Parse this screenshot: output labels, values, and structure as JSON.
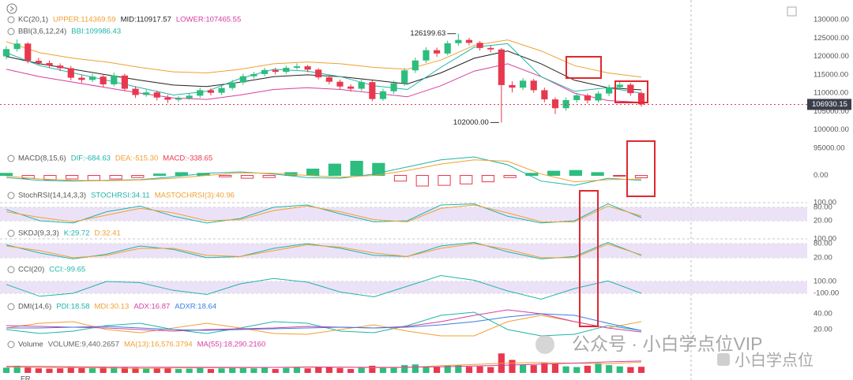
{
  "chart_data": [
    {
      "type": "candlestick",
      "overlays": [
        {
          "title": "KC(20,1)",
          "series": [
            {
              "name": "UPPER:114369.59",
              "color": "#f0a030",
              "values": [
                124000,
                121000,
                119500,
                118500,
                117000,
                115800,
                115500,
                116500,
                118000,
                118500,
                118000,
                117000,
                116500,
                119000,
                123000,
                124500,
                121500,
                117500,
                115500,
                114400
              ]
            },
            {
              "name": "MID:110917.57",
              "color": "#222222",
              "values": [
                120000,
                118000,
                116500,
                115000,
                113500,
                112200,
                111800,
                113000,
                114500,
                115000,
                114500,
                113500,
                112500,
                115500,
                119500,
                121500,
                118000,
                113500,
                111500,
                110900
              ]
            },
            {
              "name": "LOWER:107465.55",
              "color": "#d63ea0",
              "values": [
                116500,
                114500,
                113000,
                111500,
                110000,
                108700,
                108300,
                109500,
                111000,
                111500,
                111000,
                110000,
                109000,
                112000,
                116000,
                118000,
                114500,
                110000,
                108000,
                107500
              ]
            }
          ]
        },
        {
          "title": "BBI(3,6,12,24)",
          "series": [
            {
              "name": "BBI:109986.43",
              "color": "#1fb5a8",
              "values": [
                121000,
                117500,
                115500,
                113500,
                111500,
                109500,
                110500,
                114000,
                116500,
                116000,
                114500,
                112000,
                111000,
                117000,
                122500,
                123500,
                114500,
                110500,
                111500,
                109986
              ]
            }
          ]
        }
      ],
      "open": [
        120000,
        122000,
        123500,
        118800,
        118200,
        117500,
        116800,
        114200,
        113600,
        114500,
        112400,
        114800,
        111200,
        109500,
        110200,
        108800,
        108200,
        108600,
        109300,
        110800,
        110100,
        111400,
        112900,
        114600,
        115200,
        116300,
        115800,
        116900,
        117300,
        116400,
        114300,
        113100,
        111800,
        111200,
        113000,
        108400,
        110500,
        112700,
        116200,
        118900,
        121700,
        120800,
        123600,
        124500,
        123700,
        122300,
        121900,
        112200,
        111500,
        113400,
        110800,
        108300,
        105900,
        108100,
        109400,
        108000,
        109900,
        111600,
        112300,
        110000
      ],
      "high": [
        122800,
        124600,
        123900,
        119600,
        118900,
        118100,
        117400,
        114900,
        115300,
        114900,
        115600,
        115300,
        111900,
        110900,
        110700,
        109500,
        109200,
        109900,
        111500,
        111300,
        112000,
        113600,
        115300,
        115800,
        116900,
        116900,
        117500,
        118100,
        117700,
        116800,
        114900,
        113700,
        112400,
        113700,
        113500,
        111200,
        113400,
        116800,
        119700,
        122500,
        122400,
        124300,
        126199.63,
        125100,
        124200,
        122900,
        122300,
        113200,
        114100,
        113900,
        111500,
        108900,
        108800,
        110100,
        109900,
        110500,
        112300,
        113200,
        112800,
        110500
      ],
      "low": [
        119200,
        121300,
        118100,
        117600,
        116900,
        116000,
        113500,
        112800,
        113000,
        111700,
        111900,
        110500,
        108700,
        109000,
        108000,
        107300,
        107600,
        108200,
        108700,
        109400,
        109500,
        110800,
        112300,
        114000,
        114600,
        115100,
        115200,
        116400,
        115700,
        113700,
        112400,
        111000,
        110400,
        110600,
        107800,
        107900,
        109800,
        112000,
        115500,
        118200,
        119900,
        120300,
        122900,
        123000,
        121600,
        121100,
        102000,
        110200,
        110800,
        110100,
        107500,
        104300,
        105200,
        107400,
        107200,
        107500,
        109200,
        110900,
        109300,
        106300
      ],
      "close": [
        122000,
        123500,
        118800,
        118200,
        117500,
        116800,
        114200,
        113600,
        114500,
        112400,
        114800,
        111200,
        109500,
        110200,
        108800,
        108200,
        108600,
        109300,
        110800,
        110100,
        111400,
        112900,
        114600,
        115200,
        116300,
        115800,
        116900,
        117300,
        116400,
        114300,
        113100,
        111800,
        111200,
        113000,
        108400,
        110500,
        112700,
        116200,
        118900,
        121700,
        120800,
        123600,
        124500,
        123700,
        122300,
        121900,
        112200,
        111500,
        113400,
        110800,
        108300,
        105900,
        108100,
        109400,
        108000,
        109900,
        111600,
        112300,
        110000,
        106930.15
      ],
      "up_color": "#2dbd7e",
      "down_color": "#e8384f",
      "high_label": {
        "value": 126199.63,
        "label": "126199.63"
      },
      "low_label": {
        "value": 102000,
        "label": "102000.00"
      },
      "price_line": {
        "value": 106930.15,
        "label": "106930.15"
      },
      "ylim": [
        95000,
        130000
      ],
      "yticks": [
        {
          "value": 130000,
          "label": "130000.00"
        },
        {
          "value": 125000,
          "label": "125000.00"
        },
        {
          "value": 120000,
          "label": "120000.00"
        },
        {
          "value": 115000,
          "label": "115000.00"
        },
        {
          "value": 110000,
          "label": "110000.00"
        },
        {
          "value": 105000,
          "label": "105000.00"
        },
        {
          "value": 100000,
          "label": "100000.00"
        },
        {
          "value": 95000,
          "label": "95000.00"
        }
      ],
      "grid": false
    },
    {
      "type": "macd",
      "title": "MACD(8,15,6)",
      "series": [
        {
          "name": "DIF:-684.63",
          "color": "#1fb5a8",
          "values": [
            -300,
            -700,
            -800,
            -700,
            -600,
            -200,
            300,
            500,
            200,
            -300,
            -400,
            200,
            1200,
            2200,
            2600,
            1500,
            -800,
            -1400,
            -400,
            -684.63
          ]
        },
        {
          "name": "DEA:-515.30",
          "color": "#f0a030",
          "values": [
            -100,
            -500,
            -700,
            -750,
            -650,
            -400,
            0,
            350,
            300,
            0,
            -250,
            0,
            700,
            1600,
            2200,
            2000,
            200,
            -900,
            -600,
            -515.3
          ]
        }
      ],
      "bars": {
        "name": "MACD:-338.65",
        "color": "#e8384f",
        "values": [
          300,
          -400,
          -600,
          -500,
          -700,
          -500,
          -300,
          200,
          400,
          300,
          -200,
          -400,
          -300,
          400,
          900,
          1600,
          2000,
          1700,
          -800,
          -1500,
          -1400,
          -1200,
          -900,
          -300,
          300,
          600,
          700,
          400,
          -100,
          -338.65
        ]
      },
      "ylim": [
        -2500,
        2500
      ],
      "yticks": [
        {
          "value": 0,
          "label": "0.00"
        }
      ],
      "grid": false
    },
    {
      "type": "oscillator",
      "title": "StochRSI(14,14,3,3)",
      "series": [
        {
          "name": "STOCHRSI:34.11",
          "color": "#1fb5a8",
          "values": [
            70,
            20,
            10,
            60,
            85,
            40,
            10,
            30,
            80,
            90,
            50,
            15,
            20,
            90,
            95,
            40,
            10,
            20,
            95,
            34.11
          ]
        },
        {
          "name": "MASTOCHRSI(3):40.96",
          "color": "#f0a030",
          "values": [
            60,
            35,
            15,
            45,
            75,
            55,
            20,
            25,
            65,
            85,
            60,
            25,
            15,
            75,
            90,
            55,
            15,
            15,
            85,
            40.96
          ]
        }
      ],
      "ylim": [
        -15,
        125
      ],
      "yticks": [
        {
          "value": 100,
          "label": "100.00"
        },
        {
          "value": 80,
          "label": "80.00"
        },
        {
          "value": 20,
          "label": "20.00"
        }
      ],
      "grid": true,
      "shade": true
    },
    {
      "type": "oscillator",
      "title": "SKDJ(9,3,3)",
      "series": [
        {
          "name": "K:29.72",
          "color": "#1fb5a8",
          "values": [
            75,
            40,
            15,
            35,
            70,
            55,
            20,
            25,
            60,
            80,
            60,
            30,
            25,
            70,
            85,
            45,
            15,
            25,
            85,
            29.72
          ]
        },
        {
          "name": "D:32.41",
          "color": "#f0a030",
          "values": [
            70,
            50,
            20,
            30,
            60,
            60,
            30,
            25,
            50,
            75,
            65,
            40,
            25,
            60,
            80,
            55,
            20,
            20,
            78,
            32.41
          ]
        }
      ],
      "ylim": [
        -7,
        120
      ],
      "yticks": [
        {
          "value": 100,
          "label": "100.00"
        },
        {
          "value": 80,
          "label": "80.00"
        },
        {
          "value": 20,
          "label": "20.00"
        }
      ],
      "grid": true,
      "shade": true
    },
    {
      "type": "oscillator",
      "title": "CCI(20)",
      "series": [
        {
          "name": "CCI:-99.65",
          "color": "#1fb5a8",
          "values": [
            50,
            -150,
            -100,
            100,
            80,
            -50,
            -120,
            60,
            150,
            90,
            -80,
            -160,
            20,
            200,
            120,
            -60,
            -200,
            -20,
            110,
            -99.65
          ]
        }
      ],
      "ylim": [
        -200,
        200
      ],
      "yticks": [
        {
          "value": 100,
          "label": "100.00"
        },
        {
          "value": -100,
          "label": "-100.00"
        }
      ],
      "grid": true,
      "shade": true
    },
    {
      "type": "oscillator",
      "title": "DMI(14,6)",
      "series": [
        {
          "name": "PDI:18.58",
          "color": "#1fb5a8",
          "values": [
            20,
            15,
            18,
            25,
            28,
            20,
            15,
            22,
            30,
            28,
            18,
            16,
            25,
            38,
            42,
            20,
            12,
            14,
            25,
            18.58
          ]
        },
        {
          "name": "MDI:30.13",
          "color": "#f0a030",
          "values": [
            22,
            28,
            30,
            20,
            16,
            22,
            28,
            22,
            15,
            14,
            20,
            26,
            18,
            12,
            12,
            30,
            38,
            30,
            22,
            30.13
          ]
        },
        {
          "name": "ADX:16.87",
          "color": "#d63ea0",
          "values": [
            25,
            24,
            23,
            22,
            20,
            18,
            20,
            21,
            22,
            24,
            23,
            22,
            24,
            30,
            38,
            45,
            40,
            30,
            22,
            16.87
          ]
        },
        {
          "name": "ADXR:18.64",
          "color": "#3b7be0",
          "values": [
            22,
            22,
            23,
            24,
            22,
            20,
            19,
            20,
            21,
            22,
            23,
            22,
            23,
            26,
            30,
            36,
            40,
            38,
            28,
            18.64
          ]
        }
      ],
      "ylim": [
        0,
        60
      ],
      "yticks": [
        {
          "value": 40,
          "label": "40.00"
        },
        {
          "value": 20,
          "label": "20.00"
        }
      ],
      "grid": false,
      "shade": false
    },
    {
      "type": "volume",
      "title": "Volume",
      "bars": {
        "name": "VOLUME:9,440.2657",
        "color": "#666666",
        "values": [
          8000,
          11000,
          9000,
          7000,
          6500,
          7000,
          9000,
          7500,
          8000,
          9500,
          8500,
          9000,
          8000,
          6500,
          7000,
          8000,
          6000,
          6500,
          7500,
          6000,
          7000,
          8500,
          9000,
          7000,
          8000,
          6000,
          7500,
          8000,
          7000,
          8500,
          9000,
          7500,
          6000,
          8000,
          11000,
          9000,
          8000,
          12000,
          13000,
          10000,
          9000,
          11000,
          12000,
          9500,
          10000,
          9000,
          30000,
          20000,
          13000,
          12000,
          15000,
          14000,
          10000,
          9000,
          11000,
          15000,
          12000,
          10000,
          9000,
          9440.2657
        ]
      },
      "series": [
        {
          "name": "MA(13):16,576.3794",
          "color": "#f0a030",
          "values": [
            9000,
            8500,
            8000,
            7500,
            7000,
            7500,
            8000,
            7800,
            8500,
            9500,
            9000,
            8000,
            8500,
            11000,
            13000,
            15000,
            16000,
            15000,
            14000,
            16576.3794
          ]
        },
        {
          "name": "MA(55):18,290.2160",
          "color": "#d63ea0",
          "values": [
            10000,
            9800,
            9500,
            9000,
            8800,
            8700,
            8600,
            8500,
            8500,
            8700,
            8800,
            8600,
            8700,
            9500,
            10500,
            12000,
            13500,
            15000,
            17000,
            18290.216
          ]
        }
      ],
      "ylim": [
        0,
        40000
      ],
      "yticks": [],
      "grid": false
    }
  ],
  "watermark": {
    "text": "公众号 · 小白学点位VIP",
    "badge": "小白学点位"
  },
  "footer_label": "FR"
}
